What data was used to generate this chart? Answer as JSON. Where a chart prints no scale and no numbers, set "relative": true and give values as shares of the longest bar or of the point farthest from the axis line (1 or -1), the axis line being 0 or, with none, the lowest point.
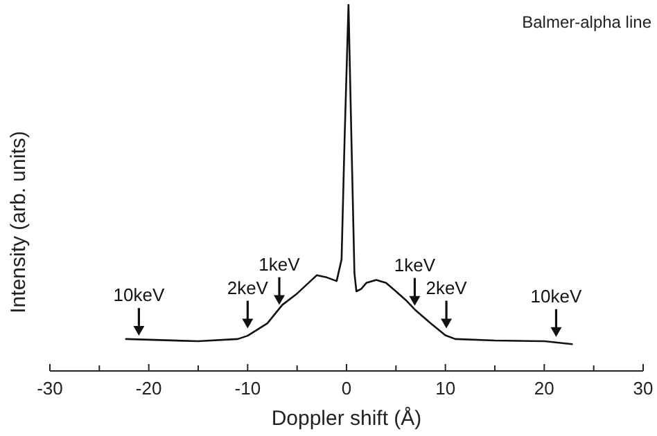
{
  "chart_data": {
    "type": "line",
    "relative": true,
    "xlabel": "Doppler shift (Å)",
    "ylabel": "Intensity (arb. units)",
    "xlim": [
      -30,
      30
    ],
    "xticks": [
      -30,
      {
        "value": -25,
        "label": null
      },
      -20,
      {
        "value": -15,
        "label": null
      },
      -10,
      {
        "value": -5,
        "label": null
      },
      0,
      {
        "value": 5,
        "label": null
      },
      10,
      {
        "value": 15,
        "label": null
      },
      20,
      {
        "value": 25,
        "label": null
      },
      30
    ],
    "x": [
      -22.3,
      -15,
      -11,
      -10,
      -8,
      -6.5,
      -5,
      -3,
      -2,
      -1,
      -0.5,
      -0.2,
      0.2,
      0.5,
      0.8,
      1,
      1.5,
      2,
      3,
      4,
      5,
      6,
      7,
      8.5,
      10,
      11,
      15,
      20,
      22.8
    ],
    "series": [
      {
        "color": "#111111",
        "values": [
          0.087,
          0.081,
          0.087,
          0.096,
          0.13,
          0.18,
          0.211,
          0.261,
          0.255,
          0.245,
          0.304,
          0.627,
          1,
          0.627,
          0.267,
          0.217,
          0.224,
          0.24,
          0.248,
          0.24,
          0.217,
          0.193,
          0.165,
          0.13,
          0.097,
          0.087,
          0.083,
          0.081,
          0.073
        ]
      }
    ],
    "annotations": [
      "Balmer-alpha line",
      {
        "text": "10keV",
        "x": -21,
        "y": 0.096
      },
      {
        "text": "2keV",
        "x": -10,
        "y": 0.116
      },
      {
        "text": "1keV",
        "x": -6.8,
        "y": 0.18
      },
      {
        "text": "1keV",
        "x": 6.9,
        "y": 0.178
      },
      {
        "text": "2keV",
        "x": 10.1,
        "y": 0.116
      },
      {
        "text": "10keV",
        "x": 21.2,
        "y": 0.093
      }
    ]
  }
}
